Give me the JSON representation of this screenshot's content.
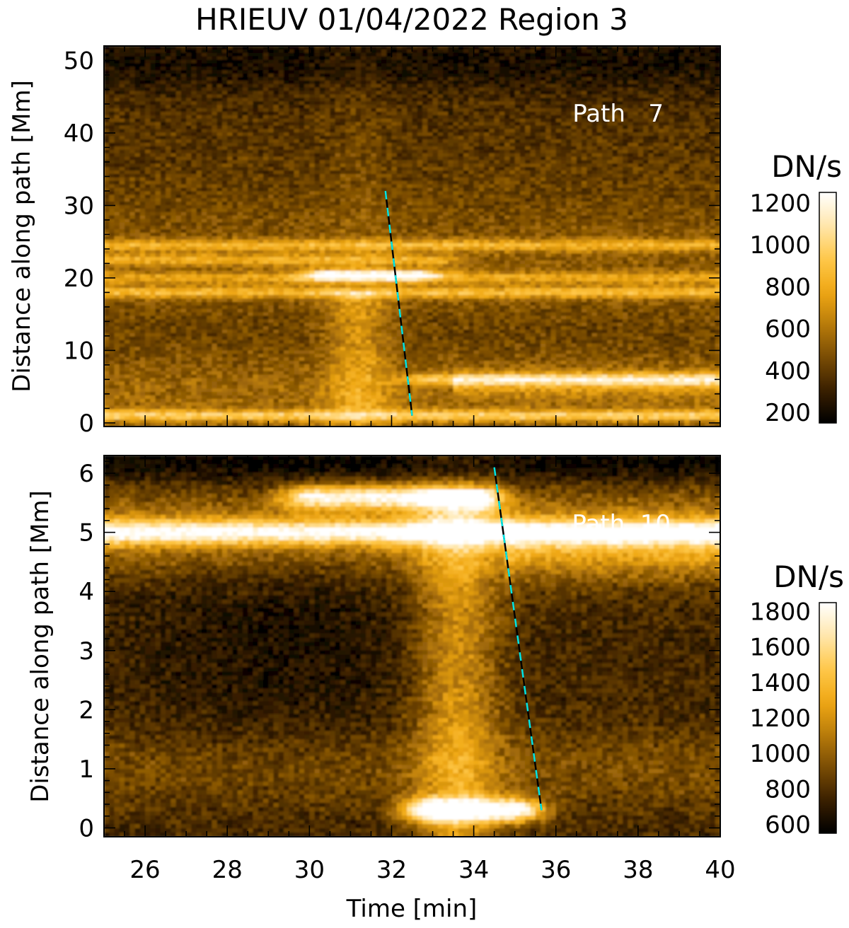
{
  "figure_title": "HRIEUV 01/04/2022  Region 3",
  "colors": {
    "ramp": [
      "#000000",
      "#3a2000",
      "#7a4c04",
      "#b97c0a",
      "#f0a814",
      "#ffc84a",
      "#ffe7ad",
      "#ffffff"
    ],
    "fit_dash_a": "#00e5e5",
    "fit_dash_b": "#000000",
    "label_color": "#ffffff",
    "background": "#ffffff"
  },
  "chart_data": [
    {
      "type": "heatmap",
      "panel": "top",
      "title": "HRIEUV 01/04/2022  Region 3",
      "annotation": "Path   7",
      "xlabel": "Time [min]",
      "ylabel": "Distance along path [Mm]",
      "xlim": [
        25,
        40
      ],
      "ylim": [
        -0.5,
        52
      ],
      "x_ticks": [
        "26",
        "28",
        "30",
        "32",
        "34",
        "36",
        "38",
        "40"
      ],
      "y_ticks": [
        "0",
        "10",
        "20",
        "30",
        "40",
        "50"
      ],
      "colorbar": {
        "label": "DN/s",
        "range": [
          150,
          1250
        ],
        "ticks": [
          "200",
          "400",
          "600",
          "800",
          "1000",
          "1200"
        ]
      },
      "bright_features": [
        {
          "y": 24.5,
          "x_range": [
            25,
            40
          ],
          "intensity": 850
        },
        {
          "y": 22.5,
          "x_range": [
            25,
            33
          ],
          "intensity": 820
        },
        {
          "y": 20.4,
          "x_range": [
            30.5,
            32.5
          ],
          "intensity": 1150
        },
        {
          "y": 20.0,
          "x_range": [
            25,
            40
          ],
          "intensity": 780
        },
        {
          "y": 18.0,
          "x_range": [
            25,
            40
          ],
          "intensity": 880
        },
        {
          "y": 6.0,
          "x_range": [
            33,
            40
          ],
          "intensity": 950
        },
        {
          "y": 1.0,
          "x_range": [
            25,
            40
          ],
          "intensity": 950
        }
      ],
      "fit_line": {
        "x": [
          31.85,
          32.5
        ],
        "y": [
          32.0,
          1.0
        ]
      }
    },
    {
      "type": "heatmap",
      "panel": "bottom",
      "annotation": "Path  10",
      "xlabel": "Time [min]",
      "ylabel": "Distance along path [Mm]",
      "xlim": [
        25,
        40
      ],
      "ylim": [
        -0.15,
        6.3
      ],
      "x_ticks": [
        "26",
        "28",
        "30",
        "32",
        "34",
        "36",
        "38",
        "40"
      ],
      "y_ticks": [
        "0",
        "1",
        "2",
        "3",
        "4",
        "5",
        "6"
      ],
      "colorbar": {
        "label": "DN/s",
        "range": [
          550,
          1850
        ],
        "ticks": [
          "600",
          "800",
          "1000",
          "1200",
          "1400",
          "1600",
          "1800"
        ]
      },
      "bright_features": [
        {
          "y": 5.0,
          "x_range": [
            25,
            40
          ],
          "intensity": 1300
        },
        {
          "y": 5.6,
          "x_range": [
            30,
            34
          ],
          "intensity": 1400
        },
        {
          "y": 0.3,
          "x_range": [
            33,
            35
          ],
          "intensity": 1600
        }
      ],
      "fit_line": {
        "x": [
          34.5,
          35.65
        ],
        "y": [
          6.1,
          0.3
        ]
      }
    }
  ]
}
